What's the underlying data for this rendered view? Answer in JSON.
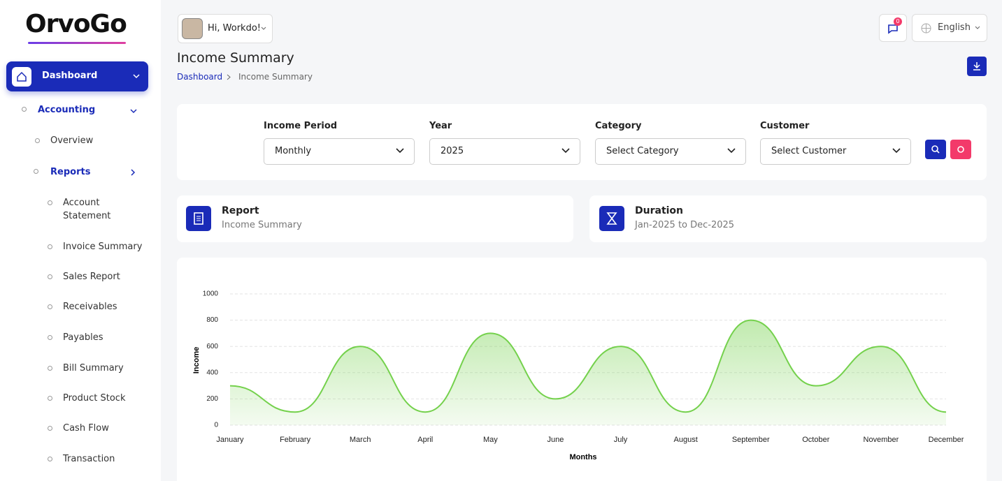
{
  "logo": "OrvoGo",
  "sidebar": {
    "items": [
      "Dashboard",
      "Accounting",
      "Overview",
      "Reports",
      "Account Statement",
      "Invoice Summary",
      "Sales Report",
      "Receivables",
      "Payables",
      "Bill Summary",
      "Product Stock",
      "Cash Flow",
      "Transaction"
    ]
  },
  "header": {
    "greeting": "Hi, Workdo!",
    "notifications": 0,
    "language": "English"
  },
  "page": {
    "title": "Income Summary",
    "breadcrumb": [
      "Dashboard",
      "Income Summary"
    ]
  },
  "filters": [
    {
      "label": "Income Period",
      "value": "Monthly"
    },
    {
      "label": "Year",
      "value": "2025"
    },
    {
      "label": "Category",
      "value": "Select Category"
    },
    {
      "label": "Customer",
      "value": "Select Customer"
    }
  ],
  "info": [
    {
      "title": "Report",
      "value": "Income Summary"
    },
    {
      "title": "Duration",
      "value": "Jan-2025 to Dec-2025"
    }
  ],
  "chart_data": {
    "type": "area",
    "x_label": "Months",
    "y_label": "Income",
    "categories": [
      "January",
      "February",
      "March",
      "April",
      "May",
      "June",
      "July",
      "August",
      "September",
      "October",
      "November",
      "December"
    ],
    "values": [
      300,
      100,
      600,
      100,
      700,
      200,
      600,
      100,
      800,
      300,
      600,
      100
    ],
    "color": "#74d14c",
    "ylim": [
      0,
      1000
    ],
    "yticks": [
      0,
      200,
      400,
      600,
      800,
      1000
    ],
    "grid": true
  }
}
